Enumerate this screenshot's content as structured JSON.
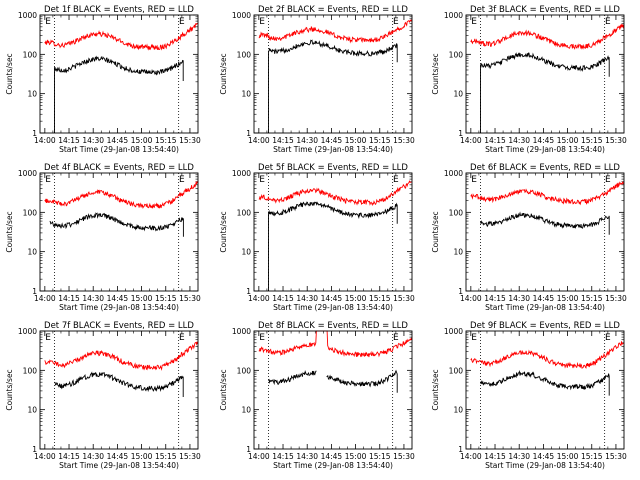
{
  "colors": {
    "background": "#ffffff",
    "events": "#000000",
    "lld": "#ff0000",
    "axes": "#000000"
  },
  "chart_data": [
    {
      "type": "line",
      "title": "Det 1f BLACK = Events, RED = LLD",
      "xlabel": "Start Time (29-Jan-08 13:54:40)",
      "ylabel": "Counts/sec",
      "x_ticks": [
        "14:00",
        "14:15",
        "14:30",
        "14:45",
        "15:00",
        "15:15",
        "15:30"
      ],
      "x_tick_minutes": [
        0,
        15,
        30,
        45,
        60,
        75,
        90
      ],
      "xlim_minutes": [
        -3,
        95
      ],
      "y_scale": "log",
      "ylim": [
        1,
        1000
      ],
      "y_ticks": [
        "1",
        "10",
        "100",
        "1000"
      ],
      "y_tick_values": [
        1,
        10,
        100,
        1000
      ],
      "markers": [
        {
          "label": "E",
          "minute": 2
        },
        {
          "label": "E",
          "minute": 85
        }
      ],
      "vlines_minutes": [
        6,
        83
      ],
      "series": [
        {
          "name": "LLD",
          "color": "#ff0000",
          "start": 0,
          "end": 95,
          "base": 150,
          "hump": 2.2,
          "end_rise": 2.8
        },
        {
          "name": "Events",
          "color": "#000000",
          "start": 6,
          "end": 86,
          "base": 35,
          "hump": 2.2,
          "end_rise": 2.5,
          "drop_start": true,
          "drop_end": true
        }
      ]
    },
    {
      "type": "line",
      "title": "Det 2f BLACK = Events, RED = LLD",
      "xlabel": "Start Time (29-Jan-08 13:54:40)",
      "ylabel": "Counts/sec",
      "x_ticks": [
        "14:00",
        "14:15",
        "14:30",
        "14:45",
        "15:00",
        "15:15",
        "15:30"
      ],
      "x_tick_minutes": [
        0,
        15,
        30,
        45,
        60,
        75,
        90
      ],
      "xlim_minutes": [
        -3,
        95
      ],
      "y_scale": "log",
      "ylim": [
        1,
        1000
      ],
      "y_ticks": [
        "1",
        "10",
        "100",
        "1000"
      ],
      "y_tick_values": [
        1,
        10,
        100,
        1000
      ],
      "markers": [
        {
          "label": "E",
          "minute": 2
        },
        {
          "label": "E",
          "minute": 85
        }
      ],
      "vlines_minutes": [
        6,
        83
      ],
      "series": [
        {
          "name": "LLD",
          "color": "#ff0000",
          "start": 0,
          "end": 95,
          "base": 230,
          "hump": 1.9,
          "end_rise": 2.4
        },
        {
          "name": "Events",
          "color": "#000000",
          "start": 6,
          "end": 86,
          "base": 105,
          "hump": 1.9,
          "end_rise": 2.0,
          "drop_start": true,
          "drop_end": true
        }
      ]
    },
    {
      "type": "line",
      "title": "Det 3f BLACK = Events, RED = LLD",
      "xlabel": "Start Time (29-Jan-08 13:54:40)",
      "ylabel": "Counts/sec",
      "x_ticks": [
        "14:00",
        "14:15",
        "14:30",
        "14:45",
        "15:00",
        "15:15",
        "15:30"
      ],
      "x_tick_minutes": [
        0,
        15,
        30,
        45,
        60,
        75,
        90
      ],
      "xlim_minutes": [
        -3,
        95
      ],
      "y_scale": "log",
      "ylim": [
        1,
        1000
      ],
      "y_ticks": [
        "1",
        "10",
        "100",
        "1000"
      ],
      "y_tick_values": [
        1,
        10,
        100,
        1000
      ],
      "markers": [
        {
          "label": "E",
          "minute": 2
        },
        {
          "label": "E",
          "minute": 85
        }
      ],
      "vlines_minutes": [
        6,
        83
      ],
      "series": [
        {
          "name": "LLD",
          "color": "#ff0000",
          "start": 0,
          "end": 95,
          "base": 160,
          "hump": 2.2,
          "end_rise": 2.6
        },
        {
          "name": "Events",
          "color": "#000000",
          "start": 6,
          "end": 86,
          "base": 45,
          "hump": 2.2,
          "end_rise": 2.4,
          "drop_start": true,
          "drop_end": true
        }
      ]
    },
    {
      "type": "line",
      "title": "Det 4f BLACK = Events, RED = LLD",
      "xlabel": "Start Time (29-Jan-08 13:54:40)",
      "ylabel": "Counts/sec",
      "x_ticks": [
        "14:00",
        "14:15",
        "14:30",
        "14:45",
        "15:00",
        "15:15",
        "15:30"
      ],
      "x_tick_minutes": [
        0,
        15,
        30,
        45,
        60,
        75,
        90
      ],
      "xlim_minutes": [
        -3,
        95
      ],
      "y_scale": "log",
      "ylim": [
        1,
        1000
      ],
      "y_ticks": [
        "1",
        "10",
        "100",
        "1000"
      ],
      "y_tick_values": [
        1,
        10,
        100,
        1000
      ],
      "markers": [
        {
          "label": "E",
          "minute": 2
        },
        {
          "label": "E",
          "minute": 85
        }
      ],
      "vlines_minutes": [
        6,
        83
      ],
      "series": [
        {
          "name": "LLD",
          "color": "#ff0000",
          "start": 0,
          "end": 95,
          "base": 145,
          "hump": 2.2,
          "end_rise": 2.8
        },
        {
          "name": "Events",
          "color": "#000000",
          "start": 3,
          "end": 86,
          "base": 40,
          "hump": 2.1,
          "end_rise": 2.3,
          "drop_start": false,
          "drop_end": true
        }
      ]
    },
    {
      "type": "line",
      "title": "Det 5f BLACK = Events, RED = LLD",
      "xlabel": "Start Time (29-Jan-08 13:54:40)",
      "ylabel": "Counts/sec",
      "x_ticks": [
        "14:00",
        "14:15",
        "14:30",
        "14:45",
        "15:00",
        "15:15",
        "15:30"
      ],
      "x_tick_minutes": [
        0,
        15,
        30,
        45,
        60,
        75,
        90
      ],
      "xlim_minutes": [
        -3,
        95
      ],
      "y_scale": "log",
      "ylim": [
        1,
        1000
      ],
      "y_ticks": [
        "1",
        "10",
        "100",
        "1000"
      ],
      "y_tick_values": [
        1,
        10,
        100,
        1000
      ],
      "markers": [
        {
          "label": "E",
          "minute": 2
        },
        {
          "label": "E",
          "minute": 85
        }
      ],
      "vlines_minutes": [
        6,
        83
      ],
      "series": [
        {
          "name": "LLD",
          "color": "#ff0000",
          "start": 0,
          "end": 95,
          "base": 180,
          "hump": 2.0,
          "end_rise": 2.5
        },
        {
          "name": "Events",
          "color": "#000000",
          "start": 6,
          "end": 86,
          "base": 85,
          "hump": 2.0,
          "end_rise": 2.3,
          "drop_start": true,
          "drop_end": true
        }
      ]
    },
    {
      "type": "line",
      "title": "Det 6f BLACK = Events, RED = LLD",
      "xlabel": "Start Time (29-Jan-08 13:54:40)",
      "ylabel": "Counts/sec",
      "x_ticks": [
        "14:00",
        "14:15",
        "14:30",
        "14:45",
        "15:00",
        "15:15",
        "15:30"
      ],
      "x_tick_minutes": [
        0,
        15,
        30,
        45,
        60,
        75,
        90
      ],
      "xlim_minutes": [
        -3,
        95
      ],
      "y_scale": "log",
      "ylim": [
        1,
        1000
      ],
      "y_ticks": [
        "1",
        "10",
        "100",
        "1000"
      ],
      "y_tick_values": [
        1,
        10,
        100,
        1000
      ],
      "markers": [
        {
          "label": "E",
          "minute": 2
        },
        {
          "label": "E",
          "minute": 85
        }
      ],
      "vlines_minutes": [
        6,
        83
      ],
      "series": [
        {
          "name": "LLD",
          "color": "#ff0000",
          "start": 0,
          "end": 95,
          "base": 190,
          "hump": 1.8,
          "end_rise": 2.4
        },
        {
          "name": "Events",
          "color": "#000000",
          "start": 6,
          "end": 86,
          "base": 45,
          "hump": 1.9,
          "end_rise": 2.4,
          "drop_start": false,
          "drop_end": true
        }
      ]
    },
    {
      "type": "line",
      "title": "Det 7f BLACK = Events, RED = LLD",
      "xlabel": "Start Time (29-Jan-08 13:54:40)",
      "ylabel": "Counts/sec",
      "x_ticks": [
        "14:00",
        "14:15",
        "14:30",
        "14:45",
        "15:00",
        "15:15",
        "15:30"
      ],
      "x_tick_minutes": [
        0,
        15,
        30,
        45,
        60,
        75,
        90
      ],
      "xlim_minutes": [
        -3,
        95
      ],
      "y_scale": "log",
      "ylim": [
        1,
        1000
      ],
      "y_ticks": [
        "1",
        "10",
        "100",
        "1000"
      ],
      "y_tick_values": [
        1,
        10,
        100,
        1000
      ],
      "markers": [
        {
          "label": "E",
          "minute": 2
        },
        {
          "label": "E",
          "minute": 85
        }
      ],
      "vlines_minutes": [
        6,
        83
      ],
      "series": [
        {
          "name": "LLD",
          "color": "#ff0000",
          "start": 0,
          "end": 95,
          "base": 120,
          "hump": 2.3,
          "end_rise": 3.0
        },
        {
          "name": "Events",
          "color": "#000000",
          "start": 6,
          "end": 86,
          "base": 35,
          "hump": 2.3,
          "end_rise": 2.6,
          "drop_start": false,
          "drop_end": true
        }
      ]
    },
    {
      "type": "line",
      "title": "Det 8f BLACK = Events, RED = LLD",
      "xlabel": "Start Time (29-Jan-08 13:54:40)",
      "ylabel": "Counts/sec",
      "x_ticks": [
        "14:00",
        "14:15",
        "14:30",
        "14:45",
        "15:00",
        "15:15",
        "15:30"
      ],
      "x_tick_minutes": [
        0,
        15,
        30,
        45,
        60,
        75,
        90
      ],
      "xlim_minutes": [
        -3,
        95
      ],
      "y_scale": "log",
      "ylim": [
        1,
        1000
      ],
      "y_ticks": [
        "1",
        "10",
        "100",
        "1000"
      ],
      "y_tick_values": [
        1,
        10,
        100,
        1000
      ],
      "markers": [
        {
          "label": "E",
          "minute": 2
        },
        {
          "label": "E",
          "minute": 85
        }
      ],
      "vlines_minutes": [
        6,
        83
      ],
      "series": [
        {
          "name": "LLD",
          "color": "#ff0000",
          "start": 0,
          "end": 95,
          "base": 250,
          "hump": 1.8,
          "end_rise": 2.0,
          "spike_start": 36,
          "spike_end": 42
        },
        {
          "name": "Events",
          "color": "#000000",
          "start": 6,
          "end": 86,
          "base": 45,
          "hump": 1.9,
          "end_rise": 2.6,
          "drop_start": false,
          "drop_end": true,
          "gap_start": 36,
          "gap_end": 42
        }
      ]
    },
    {
      "type": "line",
      "title": "Det 9f BLACK = Events, RED = LLD",
      "xlabel": "Start Time (29-Jan-08 13:54:40)",
      "ylabel": "Counts/sec",
      "x_ticks": [
        "14:00",
        "14:15",
        "14:30",
        "14:45",
        "15:00",
        "15:15",
        "15:30"
      ],
      "x_tick_minutes": [
        0,
        15,
        30,
        45,
        60,
        75,
        90
      ],
      "xlim_minutes": [
        -3,
        95
      ],
      "y_scale": "log",
      "ylim": [
        1,
        1000
      ],
      "y_ticks": [
        "1",
        "10",
        "100",
        "1000"
      ],
      "y_tick_values": [
        1,
        10,
        100,
        1000
      ],
      "markers": [
        {
          "label": "E",
          "minute": 2
        },
        {
          "label": "E",
          "minute": 85
        }
      ],
      "vlines_minutes": [
        6,
        83
      ],
      "series": [
        {
          "name": "LLD",
          "color": "#ff0000",
          "start": 0,
          "end": 95,
          "base": 130,
          "hump": 2.2,
          "end_rise": 3.0
        },
        {
          "name": "Events",
          "color": "#000000",
          "start": 6,
          "end": 86,
          "base": 38,
          "hump": 2.2,
          "end_rise": 2.6,
          "drop_start": false,
          "drop_end": true
        }
      ]
    }
  ]
}
